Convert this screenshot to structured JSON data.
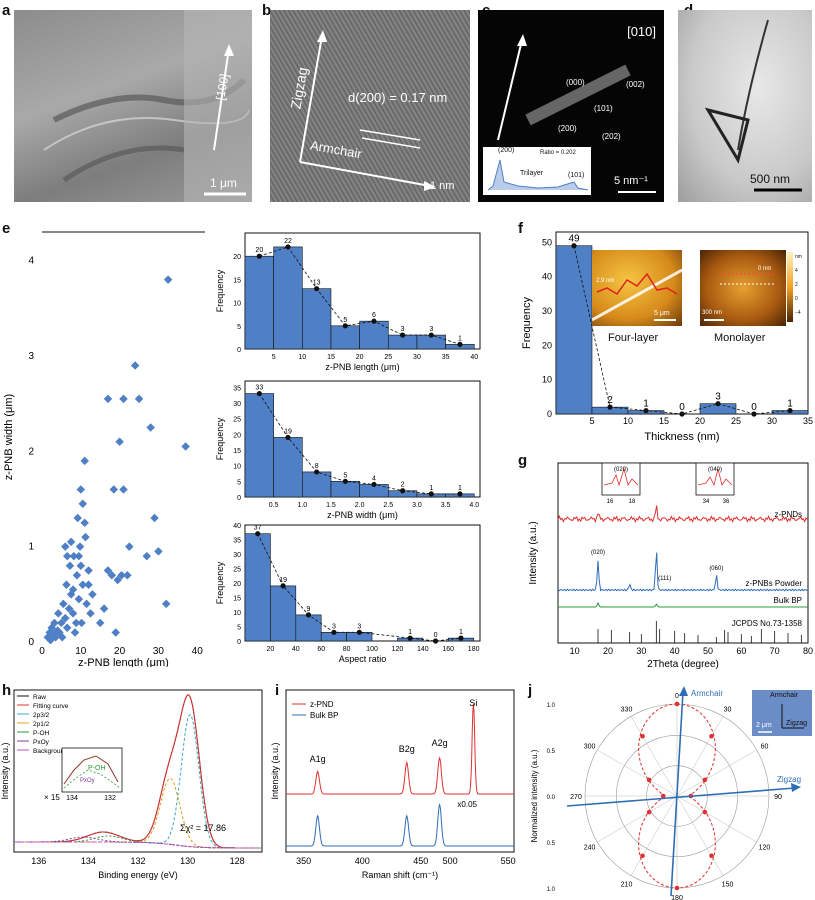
{
  "panels": {
    "a": {
      "letter": "a",
      "direction": "[100]",
      "scale_bar": "1 μm"
    },
    "b": {
      "letter": "b",
      "zigzag": "Zigzag",
      "armchair": "Armchair",
      "spacing": "d(200) = 0.17 nm",
      "scale_bar": "1 nm"
    },
    "c": {
      "letter": "c",
      "zone": "[010]",
      "spots": [
        "(000)",
        "(002)",
        "(101)",
        "(200)",
        "(202)"
      ],
      "scale_bar": "5 nm⁻¹",
      "inset_peaks": [
        "(200)",
        "(101)"
      ],
      "inset_text": "Trilayer",
      "inset_ratio": "Ratio = 0.202"
    },
    "d": {
      "letter": "d",
      "scale_bar": "500 nm"
    },
    "e": {
      "letter": "e"
    },
    "f": {
      "letter": "f",
      "inset_labels": [
        "Four-layer",
        "Monolayer"
      ],
      "inset_scales": [
        "5 μm",
        "300 nm"
      ],
      "inset_heights": [
        "2.9 nm",
        "0 nm"
      ],
      "colorbar_unit": "nm",
      "colorbar_ticks": [
        "4",
        "2",
        "0",
        "−2",
        "−4"
      ]
    },
    "g": {
      "letter": "g"
    },
    "h": {
      "letter": "h"
    },
    "i": {
      "letter": "i"
    },
    "j": {
      "letter": "j",
      "inset_title": "Armchair",
      "inset_axis": "Zigzag",
      "inset_scale": "2 μm"
    }
  },
  "colors": {
    "bar": "#4f7fc4",
    "red": "#e03030",
    "blue": "#2e6db5",
    "green": "#2a9d3a",
    "black": "#111111"
  },
  "chart_data": [
    {
      "id": "e-scatter",
      "type": "scatter",
      "xlabel": "z-PNB length (μm)",
      "ylabel": "z-PNB width (μm)",
      "xlim": [
        0,
        42
      ],
      "ylim": [
        0,
        4.3
      ],
      "xticks": [
        "0",
        "10",
        "20",
        "30",
        "40"
      ],
      "yticks": [
        "0",
        "1",
        "2",
        "3",
        "4"
      ],
      "points": [
        [
          1.5,
          0.05
        ],
        [
          2,
          0.1
        ],
        [
          2.2,
          0.02
        ],
        [
          2.5,
          0.15
        ],
        [
          3,
          0.08
        ],
        [
          3.2,
          0.2
        ],
        [
          3.5,
          0.05
        ],
        [
          4,
          0.12
        ],
        [
          4.2,
          0.3
        ],
        [
          4.5,
          0.1
        ],
        [
          5,
          0.2
        ],
        [
          5.2,
          0.05
        ],
        [
          5.5,
          0.4
        ],
        [
          6,
          0.25
        ],
        [
          6.3,
          0.6
        ],
        [
          6.5,
          0.15
        ],
        [
          7,
          0.35
        ],
        [
          7.2,
          0.8
        ],
        [
          7.5,
          0.5
        ],
        [
          8,
          0.3
        ],
        [
          8.2,
          0.9
        ],
        [
          8.5,
          0.1
        ],
        [
          9,
          0.7
        ],
        [
          9.2,
          1.3
        ],
        [
          9.5,
          0.45
        ],
        [
          9.8,
          1.0
        ],
        [
          10,
          1.6
        ],
        [
          10.2,
          0.2
        ],
        [
          10.5,
          0.6
        ],
        [
          11,
          1.9
        ],
        [
          11.2,
          1.1
        ],
        [
          11.5,
          0.4
        ],
        [
          12,
          0.75
        ],
        [
          12.5,
          0.3
        ],
        [
          13,
          0.5
        ],
        [
          6,
          1.0
        ],
        [
          6.5,
          0.9
        ],
        [
          7.5,
          1.05
        ],
        [
          8,
          0.55
        ],
        [
          8.8,
          0.2
        ],
        [
          9.5,
          0.9
        ],
        [
          10.5,
          1.45
        ],
        [
          10,
          0.8
        ],
        [
          11,
          1.25
        ],
        [
          12,
          0.6
        ],
        [
          15,
          0.2
        ],
        [
          16,
          0.35
        ],
        [
          17,
          0.75
        ],
        [
          18,
          0.7
        ],
        [
          18.5,
          1.6
        ],
        [
          19,
          0.1
        ],
        [
          19.5,
          0.65
        ],
        [
          20,
          2.1
        ],
        [
          20.5,
          0.7
        ],
        [
          21,
          1.6
        ],
        [
          21,
          2.55
        ],
        [
          22,
          0.7
        ],
        [
          22.5,
          1.0
        ],
        [
          24,
          2.9
        ],
        [
          25,
          2.55
        ],
        [
          27,
          0.9
        ],
        [
          28,
          2.25
        ],
        [
          29,
          1.3
        ],
        [
          30,
          0.95
        ],
        [
          32,
          0.4
        ],
        [
          32.5,
          3.8
        ],
        [
          37,
          2.05
        ],
        [
          17,
          2.55
        ]
      ]
    },
    {
      "id": "e-length",
      "type": "bar",
      "xlabel": "z-PNB length (μm)",
      "ylabel": "Frequency",
      "bin_centers": [
        2.5,
        7.5,
        12.5,
        17.5,
        22.5,
        27.5,
        32.5,
        37.5
      ],
      "values": [
        20,
        22,
        13,
        5,
        6,
        3,
        3,
        1
      ],
      "xlim": [
        0,
        41
      ],
      "ylim": [
        0,
        25
      ],
      "xticks": [
        "5",
        "10",
        "15",
        "20",
        "25",
        "30",
        "35",
        "40"
      ],
      "yticks": [
        "0",
        "5",
        "10",
        "15",
        "20"
      ]
    },
    {
      "id": "e-width",
      "type": "bar",
      "xlabel": "z-PNB width (μm)",
      "ylabel": "Frequency",
      "bin_centers": [
        0.25,
        0.75,
        1.25,
        1.75,
        2.25,
        2.75,
        3.25,
        3.75
      ],
      "values": [
        33,
        19,
        8,
        5,
        4,
        2,
        1,
        1
      ],
      "xlim": [
        0,
        4.1
      ],
      "ylim": [
        0,
        37
      ],
      "xticks": [
        "0.5",
        "1.0",
        "1.5",
        "2.0",
        "2.5",
        "3.0",
        "3.5",
        "4.0"
      ],
      "yticks": [
        "0",
        "5",
        "10",
        "15",
        "20",
        "25",
        "30",
        "35"
      ]
    },
    {
      "id": "e-aspect",
      "type": "bar",
      "xlabel": "Aspect ratio",
      "ylabel": "Frequency",
      "bin_centers": [
        10,
        30,
        50,
        70,
        90,
        130,
        150,
        170
      ],
      "values": [
        37,
        19,
        9,
        3,
        3,
        1,
        0,
        1
      ],
      "xlim": [
        0,
        185
      ],
      "ylim": [
        0,
        40
      ],
      "xticks": [
        "20",
        "40",
        "60",
        "80",
        "100",
        "120",
        "140",
        "160",
        "180"
      ],
      "yticks": [
        "0",
        "5",
        "10",
        "15",
        "20",
        "25",
        "30",
        "35",
        "40"
      ]
    },
    {
      "id": "f-thickness",
      "type": "bar",
      "xlabel": "Thickness (nm)",
      "ylabel": "Frequency",
      "bin_centers": [
        2.5,
        7.5,
        12.5,
        17.5,
        22.5,
        27.5,
        32.5
      ],
      "values": [
        49,
        2,
        1,
        0,
        3,
        0,
        1
      ],
      "xlim": [
        0,
        35
      ],
      "ylim": [
        0,
        53
      ],
      "xticks": [
        "5",
        "10",
        "15",
        "20",
        "25",
        "30",
        "35"
      ],
      "yticks": [
        "0",
        "10",
        "20",
        "30",
        "40",
        "50"
      ]
    },
    {
      "id": "g-xrd",
      "type": "line",
      "xlabel": "2Theta (degree)",
      "ylabel": "Intensity (a.u.)",
      "xlim": [
        5,
        80
      ],
      "xticks": [
        "10",
        "20",
        "30",
        "40",
        "50",
        "60",
        "70",
        "80"
      ],
      "series": [
        {
          "name": "z-PNDs",
          "color": "#e03030",
          "peaks": [
            [
              17,
              6
            ],
            [
              34.5,
              12
            ]
          ]
        },
        {
          "name": "z-PNBs Powder",
          "color": "#2e6db5",
          "peaks": [
            [
              17,
              30
            ],
            [
              26.5,
              6
            ],
            [
              34.5,
              40
            ],
            [
              52.5,
              15
            ]
          ]
        },
        {
          "name": "Bulk BP",
          "color": "#2a9d3a",
          "peaks": [
            [
              17,
              4
            ],
            [
              34.5,
              3
            ]
          ]
        },
        {
          "name": "JCPDS No.73-1358",
          "color": "#111111"
        }
      ],
      "annotations": [
        "(020)",
        "(040)",
        "(111)",
        "(060)"
      ],
      "inset_ticks": [
        "16",
        "18",
        "34",
        "36"
      ]
    },
    {
      "id": "h-xps",
      "type": "line",
      "xlabel": "Binding energy (eV)",
      "ylabel": "Intensity (a.u.)",
      "xlim": [
        137,
        127
      ],
      "xticks": [
        "136",
        "134",
        "132",
        "130",
        "128",
        "126"
      ],
      "legend": [
        "Raw",
        "Fitting curve",
        "2p3/2",
        "2p1/2",
        "P-OH",
        "PxOy",
        "Background"
      ],
      "annotations": [
        "Σχ² = 17.86",
        "× 15",
        "P-OH",
        "PxOy"
      ],
      "inset_ticks": [
        "134",
        "132"
      ]
    },
    {
      "id": "i-raman",
      "type": "line",
      "xlabel": "Raman shift (cm⁻¹)",
      "ylabel": "Intensity (a.u.)",
      "xticks": [
        "350",
        "400",
        "450",
        "500",
        "550"
      ],
      "series": [
        {
          "name": "z-PND",
          "color": "#e03030",
          "peaks": [
            [
              362,
              0.25
            ],
            [
              438,
              0.35
            ],
            [
              466,
              0.4
            ],
            [
              520,
              1.0
            ]
          ]
        },
        {
          "name": "Bulk BP",
          "color": "#2e6db5",
          "peaks": [
            [
              362,
              0.55
            ],
            [
              438,
              0.55
            ],
            [
              466,
              0.75
            ]
          ]
        }
      ],
      "annotations": [
        "A1g",
        "B2g",
        "A2g",
        "Si",
        "x0.05"
      ]
    },
    {
      "id": "j-polar",
      "type": "scatter",
      "ylabel": "Normalized intensity (a.u.)",
      "angles": [
        "0",
        "30",
        "60",
        "90",
        "120",
        "150",
        "180",
        "210",
        "240",
        "270",
        "300",
        "330"
      ],
      "radial_ticks": [
        "0.0",
        "0.5",
        "1.0"
      ],
      "axis_labels": [
        "Armchair",
        "Zigzag"
      ],
      "intensities": [
        1.0,
        0.75,
        0.35,
        0.15,
        0.35,
        0.75,
        1.0,
        0.75,
        0.35,
        0.15,
        0.35,
        0.75
      ]
    }
  ]
}
